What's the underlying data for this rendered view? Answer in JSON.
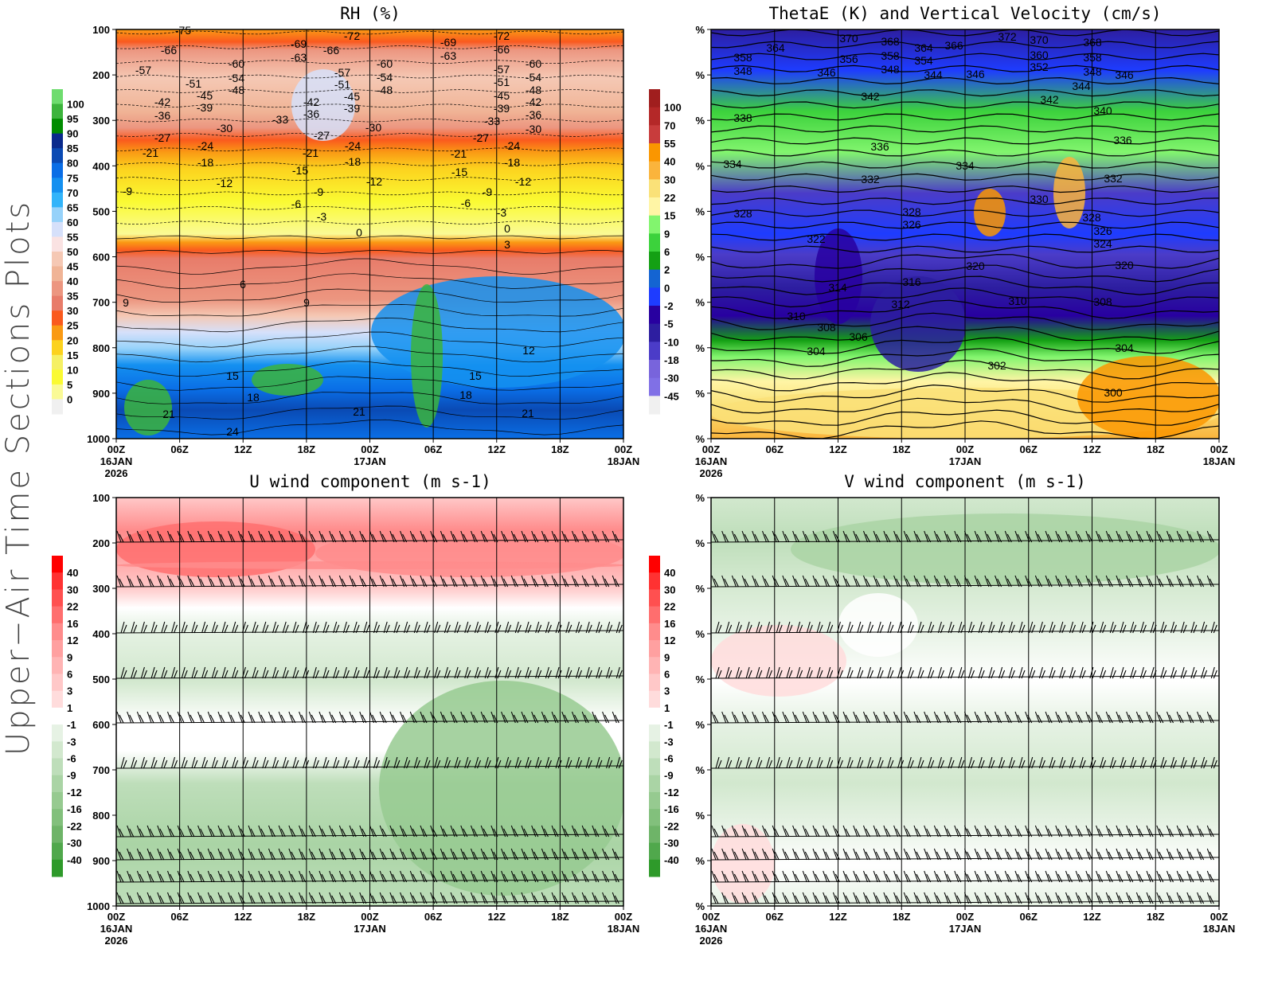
{
  "page_title": "Upper−Air Time Sections Plots",
  "chart_data": [
    {
      "type": "heatmap",
      "title": "RH (%)",
      "x_ticks": [
        [
          "00Z",
          "16JAN",
          "2026"
        ],
        [
          "06Z"
        ],
        [
          "12Z"
        ],
        [
          "18Z"
        ],
        [
          "00Z",
          "17JAN"
        ],
        [
          "06Z"
        ],
        [
          "12Z"
        ],
        [
          "18Z"
        ],
        [
          "00Z",
          "18JAN"
        ]
      ],
      "y_ticks": [
        "100",
        "200",
        "300",
        "400",
        "500",
        "600",
        "700",
        "800",
        "900",
        "1000"
      ],
      "ylim": [
        1000,
        100
      ],
      "colorbar": {
        "labels": [
          "100",
          "95",
          "90",
          "85",
          "80",
          "75",
          "70",
          "65",
          "60",
          "55",
          "50",
          "45",
          "40",
          "35",
          "30",
          "25",
          "20",
          "15",
          "10",
          "5",
          "0"
        ],
        "colors": [
          "#6edc6e",
          "#3cb43c",
          "#008c00",
          "#0a2a8c",
          "#0a4ab4",
          "#0a6ee6",
          "#1490f0",
          "#32b4fa",
          "#96d2fa",
          "#d6e0fa",
          "#fae2e2",
          "#f5c8b4",
          "#f0b496",
          "#ec9680",
          "#e87c6a",
          "#fa5a1e",
          "#fa9a14",
          "#fcd21e",
          "#f5f064",
          "#fafa32",
          "#fafa96",
          "#f0f0f0"
        ]
      },
      "contour_labels": [
        "-75",
        "-66",
        "-57",
        "-60",
        "-51",
        "-54",
        "-45",
        "-48",
        "-42",
        "-39",
        "-36",
        "-30",
        "-27",
        "-24",
        "-21",
        "-18",
        "-12",
        "-9",
        "-69",
        "-63",
        "-66",
        "-72",
        "-57",
        "-51",
        "-42",
        "-45",
        "-36",
        "-39",
        "-33",
        "-27",
        "-30",
        "-24",
        "-21",
        "-18",
        "-15",
        "-12",
        "-9",
        "-6",
        "-3",
        "0",
        "-60",
        "-54",
        "-48",
        "-69",
        "-63",
        "-72",
        "-66",
        "-57",
        "-60",
        "-51",
        "-54",
        "-45",
        "-48",
        "-39",
        "-42",
        "-33",
        "-36",
        "-30",
        "-27",
        "-24",
        "-21",
        "-18",
        "-15",
        "-12",
        "-9",
        "-6",
        "-3",
        "0",
        "3",
        "6",
        "9",
        "9",
        "12",
        "15",
        "15",
        "18",
        "18",
        "21",
        "21",
        "21",
        "24"
      ]
    },
    {
      "type": "heatmap",
      "title": "ThetaE (K) and Vertical Velocity (cm/s)",
      "x_ticks": [
        [
          "00Z",
          "16JAN",
          "2026"
        ],
        [
          "06Z"
        ],
        [
          "12Z"
        ],
        [
          "18Z"
        ],
        [
          "00Z",
          "17JAN"
        ],
        [
          "06Z"
        ],
        [
          "12Z"
        ],
        [
          "18Z"
        ],
        [
          "00Z",
          "18JAN"
        ]
      ],
      "y_ticks": [
        "%",
        "%",
        "%",
        "%",
        "%",
        "%",
        "%",
        "%",
        "%",
        "%"
      ],
      "colorbar": {
        "labels": [
          "100",
          "70",
          "55",
          "40",
          "30",
          "22",
          "15",
          "9",
          "6",
          "2",
          "0",
          "-2",
          "-5",
          "-10",
          "-18",
          "-30",
          "-45"
        ],
        "colors": [
          "#a01e1e",
          "#b42828",
          "#c83c3c",
          "#fa9600",
          "#fab43c",
          "#fae178",
          "#fff5a5",
          "#82f56e",
          "#3cd23c",
          "#14a014",
          "#1464d2",
          "#1e3cff",
          "#2800a0",
          "#2d1ea0",
          "#4b3cc8",
          "#7864dc",
          "#8070e6",
          "#f0f0f0"
        ]
      },
      "contour_labels": [
        "370",
        "368",
        "364",
        "366",
        "372",
        "370",
        "368",
        "364",
        "358",
        "356",
        "358",
        "354",
        "360",
        "358",
        "348",
        "346",
        "348",
        "344",
        "346",
        "352",
        "348",
        "346",
        "344",
        "342",
        "342",
        "340",
        "338",
        "336",
        "336",
        "334",
        "334",
        "332",
        "332",
        "330",
        "328",
        "328",
        "326",
        "328",
        "326",
        "324",
        "322",
        "320",
        "320",
        "316",
        "314",
        "312",
        "310",
        "308",
        "310",
        "308",
        "306",
        "304",
        "304",
        "302",
        "300"
      ]
    },
    {
      "type": "heatmap",
      "title": "U wind component (m s-1)",
      "x_ticks": [
        [
          "00Z",
          "16JAN",
          "2026"
        ],
        [
          "06Z"
        ],
        [
          "12Z"
        ],
        [
          "18Z"
        ],
        [
          "00Z",
          "17JAN"
        ],
        [
          "06Z"
        ],
        [
          "12Z"
        ],
        [
          "18Z"
        ],
        [
          "00Z",
          "18JAN"
        ]
      ],
      "y_ticks": [
        "100",
        "200",
        "300",
        "400",
        "500",
        "600",
        "700",
        "800",
        "900",
        "1000"
      ],
      "ylim": [
        1000,
        100
      ],
      "colorbar": {
        "labels": [
          "40",
          "30",
          "22",
          "16",
          "12",
          "9",
          "6",
          "3",
          "1",
          "-1",
          "-3",
          "-6",
          "-9",
          "-12",
          "-16",
          "-22",
          "-30",
          "-40"
        ],
        "colors": [
          "#ff0000",
          "#ff3232",
          "#ff5050",
          "#ff6e6e",
          "#ff8c8c",
          "#ffa0a0",
          "#ffb4b4",
          "#ffc8c8",
          "#ffdcdc",
          "#ffffff",
          "#e6f2e4",
          "#d2e8ce",
          "#bedeba",
          "#aad4a5",
          "#96ca90",
          "#82c07c",
          "#6eb468",
          "#50a84c",
          "#2e9a2a"
        ]
      },
      "overlay": "wind barbs"
    },
    {
      "type": "heatmap",
      "title": "V wind component (m s-1)",
      "x_ticks": [
        [
          "00Z",
          "16JAN",
          "2026"
        ],
        [
          "06Z"
        ],
        [
          "12Z"
        ],
        [
          "18Z"
        ],
        [
          "00Z",
          "17JAN"
        ],
        [
          "06Z"
        ],
        [
          "12Z"
        ],
        [
          "18Z"
        ],
        [
          "00Z",
          "18JAN"
        ]
      ],
      "y_ticks": [
        "%",
        "%",
        "%",
        "%",
        "%",
        "%",
        "%",
        "%",
        "%",
        "%"
      ],
      "colorbar": {
        "labels": [
          "40",
          "30",
          "22",
          "16",
          "12",
          "9",
          "6",
          "3",
          "1",
          "-1",
          "-3",
          "-6",
          "-9",
          "-12",
          "-16",
          "-22",
          "-30",
          "-40"
        ],
        "colors": [
          "#ff0000",
          "#ff3232",
          "#ff5050",
          "#ff6e6e",
          "#ff8c8c",
          "#ffa0a0",
          "#ffb4b4",
          "#ffc8c8",
          "#ffdcdc",
          "#ffffff",
          "#e6f2e4",
          "#d2e8ce",
          "#bedeba",
          "#aad4a5",
          "#96ca90",
          "#82c07c",
          "#6eb468",
          "#50a84c",
          "#2e9a2a"
        ]
      },
      "overlay": "wind barbs"
    }
  ]
}
